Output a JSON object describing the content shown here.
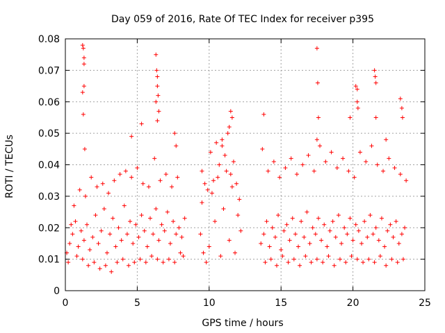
{
  "chart_data": {
    "type": "scatter",
    "title": "Day 059 of 2016, Rate Of TEC Index for receiver p395",
    "xlabel": "GPS time / hours",
    "ylabel": "ROTI / TECUs",
    "xlim": [
      0,
      25
    ],
    "ylim": [
      0,
      0.08
    ],
    "xticks": [
      0,
      5,
      10,
      15,
      20,
      25
    ],
    "xtick_labels": [
      "0",
      "5",
      "10",
      "15",
      "20",
      "25"
    ],
    "yticks": [
      0,
      0.01,
      0.02,
      0.03,
      0.04,
      0.05,
      0.06,
      0.07,
      0.08
    ],
    "ytick_labels": [
      "0",
      "0.01",
      "0.02",
      "0.03",
      "0.04",
      "0.05",
      "0.06",
      "0.07",
      "0.08"
    ],
    "grid": true,
    "marker": "+",
    "color": "#ff0000",
    "series": [
      {
        "name": "ROTI",
        "x": [
          0.1,
          0.3,
          0.5,
          0.7,
          0.9,
          1.1,
          1.3,
          1.5,
          1.7,
          1.9,
          2.1,
          2.3,
          2.5,
          2.7,
          2.9,
          3.1,
          3.3,
          3.5,
          3.7,
          3.9,
          4.1,
          4.3,
          4.5,
          4.7,
          4.9,
          5.1,
          5.3,
          5.5,
          5.7,
          5.9,
          6.1,
          6.3,
          6.5,
          6.7,
          6.9,
          7.1,
          7.3,
          7.5,
          7.7,
          7.9,
          8.1,
          8.3,
          0.2,
          0.4,
          0.6,
          0.8,
          1.0,
          1.2,
          1.4,
          1.6,
          1.8,
          2.0,
          2.2,
          2.4,
          2.6,
          2.8,
          3.0,
          3.2,
          3.4,
          3.6,
          3.8,
          4.0,
          4.2,
          4.4,
          4.6,
          4.8,
          5.0,
          5.2,
          5.4,
          5.6,
          5.8,
          6.0,
          6.2,
          6.4,
          6.6,
          6.8,
          7.0,
          7.2,
          7.4,
          7.6,
          7.8,
          8.0,
          8.2,
          1.2,
          1.25,
          1.3,
          1.3,
          1.3,
          1.2,
          1.25,
          1.35,
          6.3,
          6.35,
          6.4,
          6.4,
          6.45,
          6.3,
          6.5,
          6.4,
          4.6,
          5.3,
          7.6,
          7.7,
          9.4,
          9.5,
          9.6,
          9.7,
          9.8,
          10.0,
          10.2,
          10.4,
          10.6,
          10.8,
          11.0,
          11.2,
          11.4,
          11.6,
          11.8,
          12.0,
          12.2,
          9.5,
          9.9,
          10.1,
          10.3,
          10.5,
          10.7,
          10.9,
          11.1,
          11.3,
          11.5,
          11.7,
          11.9,
          12.1,
          11.5,
          11.6,
          11.4,
          10.9,
          13.6,
          13.8,
          14.0,
          14.2,
          14.4,
          14.6,
          14.8,
          15.0,
          15.2,
          15.4,
          15.6,
          15.8,
          16.0,
          16.2,
          16.4,
          16.6,
          16.8,
          17.0,
          17.2,
          17.4,
          17.6,
          17.8,
          18.0,
          18.2,
          18.4,
          18.6,
          18.8,
          19.0,
          19.2,
          19.4,
          19.6,
          19.8,
          20.0,
          20.2,
          20.4,
          20.6,
          20.8,
          21.0,
          21.2,
          21.4,
          21.6,
          21.8,
          22.0,
          22.2,
          22.4,
          22.6,
          22.8,
          23.0,
          23.2,
          23.4,
          23.6,
          13.7,
          13.9,
          14.1,
          14.3,
          14.5,
          14.7,
          14.9,
          15.1,
          15.3,
          15.5,
          15.7,
          15.9,
          16.1,
          16.3,
          16.5,
          16.7,
          16.9,
          17.1,
          17.3,
          17.5,
          17.7,
          17.9,
          18.1,
          18.3,
          18.5,
          18.7,
          18.9,
          19.1,
          19.3,
          19.5,
          19.7,
          19.9,
          20.1,
          20.3,
          20.5,
          20.7,
          20.9,
          21.1,
          21.3,
          21.5,
          21.7,
          21.9,
          22.1,
          22.3,
          22.5,
          22.7,
          22.9,
          23.1,
          23.3,
          23.5,
          23.7,
          13.8,
          17.5,
          17.55,
          17.6,
          17.5,
          20.2,
          20.3,
          20.3,
          20.35,
          21.5,
          21.55,
          21.6,
          23.3,
          23.4,
          23.45,
          19.8,
          21.6,
          22.3
        ],
        "y": [
          0.012,
          0.015,
          0.018,
          0.022,
          0.014,
          0.019,
          0.016,
          0.021,
          0.013,
          0.017,
          0.024,
          0.015,
          0.019,
          0.026,
          0.012,
          0.018,
          0.023,
          0.014,
          0.02,
          0.016,
          0.027,
          0.018,
          0.022,
          0.015,
          0.021,
          0.017,
          0.024,
          0.019,
          0.014,
          0.023,
          0.018,
          0.026,
          0.016,
          0.021,
          0.019,
          0.025,
          0.015,
          0.022,
          0.018,
          0.02,
          0.017,
          0.023,
          0.009,
          0.021,
          0.027,
          0.011,
          0.032,
          0.01,
          0.03,
          0.008,
          0.036,
          0.009,
          0.033,
          0.007,
          0.034,
          0.008,
          0.031,
          0.006,
          0.035,
          0.009,
          0.037,
          0.01,
          0.038,
          0.008,
          0.036,
          0.009,
          0.039,
          0.01,
          0.034,
          0.009,
          0.033,
          0.011,
          0.042,
          0.01,
          0.035,
          0.009,
          0.037,
          0.01,
          0.033,
          0.009,
          0.036,
          0.012,
          0.011,
          0.078,
          0.077,
          0.074,
          0.072,
          0.065,
          0.063,
          0.056,
          0.045,
          0.075,
          0.07,
          0.068,
          0.065,
          0.062,
          0.06,
          0.057,
          0.054,
          0.049,
          0.053,
          0.05,
          0.046,
          0.018,
          0.028,
          0.012,
          0.034,
          0.009,
          0.014,
          0.031,
          0.022,
          0.036,
          0.011,
          0.026,
          0.038,
          0.016,
          0.033,
          0.012,
          0.024,
          0.019,
          0.038,
          0.032,
          0.044,
          0.035,
          0.047,
          0.04,
          0.048,
          0.043,
          0.05,
          0.037,
          0.041,
          0.034,
          0.029,
          0.057,
          0.055,
          0.052,
          0.046,
          0.015,
          0.018,
          0.022,
          0.014,
          0.02,
          0.017,
          0.024,
          0.013,
          0.019,
          0.021,
          0.016,
          0.023,
          0.018,
          0.014,
          0.022,
          0.017,
          0.025,
          0.015,
          0.02,
          0.018,
          0.023,
          0.016,
          0.021,
          0.014,
          0.019,
          0.022,
          0.017,
          0.024,
          0.015,
          0.02,
          0.018,
          0.023,
          0.016,
          0.021,
          0.019,
          0.015,
          0.022,
          0.017,
          0.024,
          0.018,
          0.02,
          0.016,
          0.023,
          0.014,
          0.019,
          0.021,
          0.017,
          0.022,
          0.015,
          0.018,
          0.02,
          0.045,
          0.009,
          0.038,
          0.01,
          0.041,
          0.008,
          0.036,
          0.011,
          0.039,
          0.009,
          0.042,
          0.01,
          0.037,
          0.008,
          0.04,
          0.011,
          0.043,
          0.009,
          0.038,
          0.01,
          0.046,
          0.009,
          0.041,
          0.011,
          0.044,
          0.008,
          0.039,
          0.01,
          0.042,
          0.009,
          0.038,
          0.011,
          0.036,
          0.01,
          0.044,
          0.009,
          0.041,
          0.01,
          0.046,
          0.009,
          0.04,
          0.011,
          0.038,
          0.008,
          0.042,
          0.01,
          0.039,
          0.009,
          0.037,
          0.01,
          0.035,
          0.056,
          0.077,
          0.066,
          0.055,
          0.048,
          0.065,
          0.064,
          0.06,
          0.058,
          0.07,
          0.068,
          0.066,
          0.061,
          0.058,
          0.055,
          0.055,
          0.055,
          0.048
        ]
      }
    ]
  }
}
